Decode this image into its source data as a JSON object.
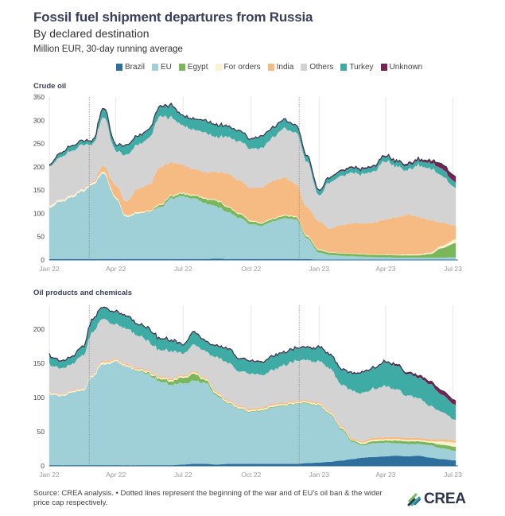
{
  "header": {
    "title": "Fossil fuel shipment departures from Russia",
    "subtitle": "By declared destination",
    "units": "Million EUR, 30-day running average"
  },
  "legend": [
    {
      "label": "Brazil",
      "color": "#2e6f9e"
    },
    {
      "label": "EU",
      "color": "#9fd0d8"
    },
    {
      "label": "Egypt",
      "color": "#79b75a"
    },
    {
      "label": "For orders",
      "color": "#fdf1cf"
    },
    {
      "label": "India",
      "color": "#f6bb82"
    },
    {
      "label": "Others",
      "color": "#d3d3d3"
    },
    {
      "label": "Turkey",
      "color": "#3eaca4"
    },
    {
      "label": "Unknown",
      "color": "#7b2052"
    }
  ],
  "footer": {
    "source": "Source: CREA analysis. • Dotted lines represent the beginning of the war and of EU's oil ban & the wider price cap respectively.",
    "logo_text": "CREA"
  },
  "chart_data": [
    {
      "type": "area",
      "stacked": true,
      "title": "Crude oil",
      "xlabel": "",
      "ylabel": "Million EUR",
      "ylim": [
        0,
        350
      ],
      "yticks": [
        0,
        50,
        100,
        150,
        200,
        250,
        300,
        350
      ],
      "xticks": [
        "Jan 22",
        "Apr 22",
        "Jul 22",
        "Oct 22",
        "Jan 23",
        "Apr 23",
        "Jul 23"
      ],
      "grid": "vertical",
      "annotations": [
        {
          "type": "dotted-vline",
          "x": "2022-02-24",
          "label": "Beginning of the war"
        },
        {
          "type": "dotted-vline",
          "x": "2022-12-05",
          "label": "EU oil ban & price cap"
        }
      ],
      "x": [
        "2022-01-01",
        "2022-01-15",
        "2022-02-01",
        "2022-02-15",
        "2022-03-01",
        "2022-03-15",
        "2022-04-01",
        "2022-04-15",
        "2022-05-01",
        "2022-05-15",
        "2022-06-01",
        "2022-06-15",
        "2022-07-01",
        "2022-07-15",
        "2022-08-01",
        "2022-08-15",
        "2022-09-01",
        "2022-09-15",
        "2022-10-01",
        "2022-10-15",
        "2022-11-01",
        "2022-11-15",
        "2022-12-01",
        "2022-12-15",
        "2023-01-01",
        "2023-01-15",
        "2023-02-01",
        "2023-02-15",
        "2023-03-01",
        "2023-03-15",
        "2023-04-01",
        "2023-04-15",
        "2023-05-01",
        "2023-05-15",
        "2023-06-01",
        "2023-06-15",
        "2023-07-05"
      ],
      "series": [
        {
          "name": "Brazil",
          "values": [
            2,
            2,
            2,
            2,
            2,
            2,
            2,
            2,
            2,
            2,
            2,
            2,
            2,
            2,
            2,
            3,
            2,
            2,
            2,
            2,
            2,
            2,
            2,
            2,
            1,
            1,
            1,
            1,
            1,
            1,
            1,
            1,
            1,
            1,
            1,
            1,
            1
          ]
        },
        {
          "name": "EU",
          "values": [
            110,
            122,
            132,
            145,
            160,
            185,
            130,
            90,
            98,
            100,
            112,
            130,
            135,
            130,
            120,
            112,
            100,
            88,
            75,
            72,
            82,
            88,
            85,
            45,
            15,
            10,
            8,
            7,
            6,
            5,
            5,
            4,
            4,
            4,
            4,
            4,
            5
          ]
        },
        {
          "name": "Egypt",
          "values": [
            0,
            0,
            0,
            0,
            0,
            0,
            0,
            0,
            0,
            1,
            4,
            5,
            5,
            6,
            9,
            12,
            10,
            8,
            6,
            5,
            5,
            5,
            5,
            4,
            5,
            5,
            5,
            5,
            5,
            5,
            5,
            5,
            5,
            5,
            8,
            20,
            30
          ]
        },
        {
          "name": "For orders",
          "values": [
            5,
            4,
            4,
            4,
            4,
            4,
            3,
            3,
            3,
            2,
            2,
            2,
            2,
            2,
            2,
            2,
            2,
            2,
            2,
            2,
            2,
            2,
            2,
            2,
            2,
            1,
            1,
            1,
            1,
            1,
            1,
            1,
            2,
            2,
            3,
            5,
            8
          ]
        },
        {
          "name": "India",
          "values": [
            0,
            0,
            0,
            0,
            2,
            12,
            25,
            30,
            50,
            55,
            80,
            70,
            60,
            55,
            55,
            60,
            70,
            70,
            70,
            75,
            80,
            80,
            70,
            60,
            60,
            50,
            60,
            65,
            65,
            68,
            75,
            80,
            85,
            80,
            70,
            50,
            30
          ]
        },
        {
          "name": "Others",
          "values": [
            85,
            90,
            95,
            95,
            80,
            105,
            75,
            100,
            95,
            100,
            110,
            95,
            85,
            85,
            85,
            75,
            80,
            85,
            85,
            85,
            95,
            105,
            110,
            100,
            55,
            100,
            105,
            110,
            105,
            110,
            125,
            110,
            95,
            110,
            110,
            100,
            80
          ]
        },
        {
          "name": "Turkey",
          "values": [
            3,
            8,
            10,
            8,
            7,
            18,
            12,
            20,
            18,
            18,
            20,
            25,
            20,
            22,
            25,
            25,
            22,
            22,
            20,
            25,
            20,
            18,
            15,
            12,
            10,
            10,
            10,
            10,
            10,
            10,
            10,
            10,
            10,
            10,
            12,
            15,
            12
          ]
        },
        {
          "name": "Unknown",
          "values": [
            1,
            1,
            1,
            1,
            1,
            2,
            1,
            1,
            1,
            1,
            2,
            2,
            1,
            1,
            1,
            1,
            1,
            1,
            1,
            1,
            1,
            1,
            1,
            1,
            1,
            1,
            2,
            2,
            2,
            2,
            2,
            2,
            3,
            3,
            5,
            10,
            12
          ]
        }
      ]
    },
    {
      "type": "area",
      "stacked": true,
      "title": "Oil products and chemicals",
      "xlabel": "",
      "ylabel": "Million EUR",
      "ylim": [
        0,
        235
      ],
      "yticks": [
        0,
        50,
        100,
        150,
        200
      ],
      "xticks": [
        "Jan 22",
        "Apr 22",
        "Jul 22",
        "Oct 22",
        "Jan 23",
        "Apr 23",
        "Jul 23"
      ],
      "grid": "vertical",
      "annotations": [
        {
          "type": "dotted-vline",
          "x": "2022-02-24",
          "label": "Beginning of the war"
        },
        {
          "type": "dotted-vline",
          "x": "2022-12-05",
          "label": "EU oil ban & price cap"
        }
      ],
      "x": [
        "2022-01-01",
        "2022-01-15",
        "2022-02-01",
        "2022-02-15",
        "2022-03-01",
        "2022-03-15",
        "2022-04-01",
        "2022-04-15",
        "2022-05-01",
        "2022-05-15",
        "2022-06-01",
        "2022-06-15",
        "2022-07-01",
        "2022-07-15",
        "2022-08-01",
        "2022-08-15",
        "2022-09-01",
        "2022-09-15",
        "2022-10-01",
        "2022-10-15",
        "2022-11-01",
        "2022-11-15",
        "2022-12-01",
        "2022-12-15",
        "2023-01-01",
        "2023-01-15",
        "2023-02-01",
        "2023-02-15",
        "2023-03-01",
        "2023-03-15",
        "2023-04-01",
        "2023-04-15",
        "2023-05-01",
        "2023-05-15",
        "2023-06-01",
        "2023-06-15",
        "2023-07-05"
      ],
      "series": [
        {
          "name": "Brazil",
          "values": [
            1,
            1,
            1,
            1,
            1,
            1,
            1,
            1,
            1,
            1,
            1,
            1,
            2,
            3,
            3,
            2,
            3,
            3,
            3,
            3,
            3,
            3,
            3,
            4,
            5,
            6,
            8,
            10,
            12,
            13,
            14,
            15,
            14,
            15,
            12,
            10,
            8
          ]
        },
        {
          "name": "EU",
          "values": [
            105,
            100,
            105,
            110,
            130,
            148,
            150,
            145,
            138,
            132,
            122,
            118,
            118,
            122,
            118,
            100,
            88,
            80,
            75,
            78,
            82,
            85,
            87,
            87,
            83,
            70,
            45,
            25,
            18,
            20,
            20,
            18,
            18,
            17,
            18,
            16,
            14
          ]
        },
        {
          "name": "Egypt",
          "values": [
            0,
            0,
            0,
            0,
            0,
            0,
            0,
            0,
            1,
            2,
            4,
            5,
            8,
            10,
            4,
            2,
            1,
            1,
            1,
            1,
            1,
            1,
            1,
            1,
            1,
            1,
            2,
            2,
            2,
            3,
            3,
            4,
            4,
            4,
            4,
            5,
            6
          ]
        },
        {
          "name": "For orders",
          "values": [
            2,
            2,
            2,
            2,
            2,
            3,
            2,
            2,
            2,
            2,
            2,
            2,
            2,
            2,
            2,
            2,
            2,
            2,
            2,
            2,
            2,
            2,
            2,
            2,
            2,
            2,
            2,
            1,
            2,
            2,
            2,
            2,
            2,
            2,
            2,
            5,
            6
          ]
        },
        {
          "name": "India",
          "values": [
            1,
            1,
            1,
            1,
            1,
            2,
            2,
            2,
            2,
            2,
            2,
            2,
            2,
            2,
            2,
            2,
            2,
            2,
            2,
            2,
            2,
            2,
            2,
            2,
            2,
            2,
            2,
            2,
            2,
            3,
            3,
            3,
            3,
            3,
            3,
            3,
            3
          ]
        },
        {
          "name": "Others",
          "values": [
            40,
            38,
            38,
            48,
            62,
            62,
            50,
            52,
            48,
            42,
            38,
            40,
            32,
            38,
            38,
            50,
            55,
            50,
            52,
            48,
            50,
            55,
            58,
            58,
            60,
            62,
            60,
            70,
            70,
            72,
            75,
            70,
            62,
            58,
            48,
            40,
            30
          ]
        },
        {
          "name": "Turkey",
          "values": [
            12,
            10,
            10,
            12,
            18,
            16,
            18,
            18,
            16,
            18,
            16,
            15,
            12,
            18,
            14,
            16,
            20,
            18,
            18,
            18,
            20,
            18,
            18,
            18,
            20,
            20,
            22,
            25,
            30,
            30,
            35,
            35,
            32,
            30,
            32,
            25,
            22
          ]
        },
        {
          "name": "Unknown",
          "values": [
            1,
            1,
            1,
            1,
            1,
            1,
            1,
            1,
            1,
            1,
            1,
            1,
            1,
            1,
            1,
            1,
            1,
            1,
            1,
            1,
            1,
            1,
            1,
            1,
            1,
            1,
            1,
            1,
            1,
            1,
            1,
            2,
            2,
            3,
            4,
            6,
            6
          ]
        }
      ]
    }
  ]
}
